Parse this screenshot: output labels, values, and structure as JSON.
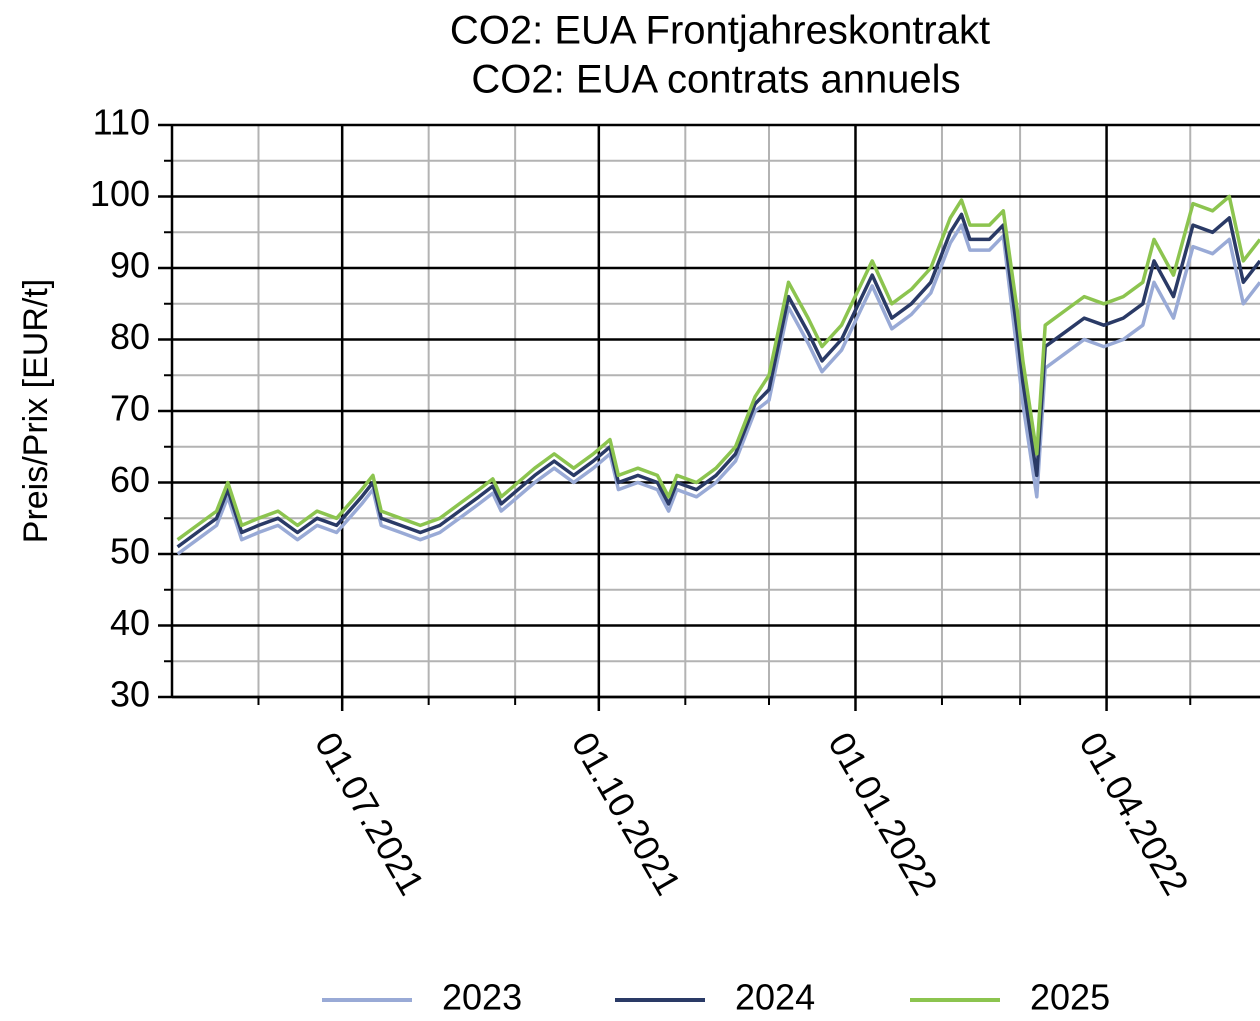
{
  "chart_data": {
    "type": "line",
    "title": "CO2: EUA Frontjahreskontrakt",
    "subtitle": "CO2: EUA contrats annuels",
    "y_label": "Preis/Prix [EUR/t]",
    "x": [
      "2021-05-03",
      "2021-05-10",
      "2021-05-17",
      "2021-05-21",
      "2021-05-26",
      "2021-06-01",
      "2021-06-08",
      "2021-06-15",
      "2021-06-22",
      "2021-06-29",
      "2021-07-08",
      "2021-07-12",
      "2021-07-15",
      "2021-07-22",
      "2021-07-29",
      "2021-08-05",
      "2021-08-12",
      "2021-08-19",
      "2021-08-24",
      "2021-08-27",
      "2021-09-08",
      "2021-09-15",
      "2021-09-22",
      "2021-09-29",
      "2021-10-05",
      "2021-10-08",
      "2021-10-15",
      "2021-10-22",
      "2021-10-26",
      "2021-10-29",
      "2021-11-05",
      "2021-11-12",
      "2021-11-19",
      "2021-11-26",
      "2021-12-01",
      "2021-12-08",
      "2021-12-15",
      "2021-12-20",
      "2021-12-27",
      "2022-01-07",
      "2022-01-14",
      "2022-01-21",
      "2022-01-28",
      "2022-02-04",
      "2022-02-08",
      "2022-02-11",
      "2022-02-18",
      "2022-02-23",
      "2022-02-28",
      "2022-03-02",
      "2022-03-07",
      "2022-03-10",
      "2022-03-17",
      "2022-03-24",
      "2022-03-31",
      "2022-04-07",
      "2022-04-14",
      "2022-04-18",
      "2022-04-25",
      "2022-05-02",
      "2022-05-09",
      "2022-05-15",
      "2022-05-20",
      "2022-05-26"
    ],
    "series": [
      {
        "name": "2023",
        "color": "#99aad6",
        "values": [
          50,
          52,
          54,
          58,
          52,
          53,
          54,
          52,
          54,
          53,
          57,
          59,
          54,
          53,
          52,
          53,
          55,
          57,
          58.5,
          56,
          60,
          62,
          60,
          62,
          64,
          59,
          60,
          59,
          56,
          59,
          58,
          60,
          63,
          70,
          71.5,
          84.5,
          79.5,
          75.5,
          78.5,
          87.5,
          81.5,
          83.5,
          86.5,
          93.5,
          96,
          92.5,
          92.5,
          94.5,
          78,
          71,
          58,
          76,
          78,
          80,
          79,
          80,
          82,
          88,
          83,
          93,
          92,
          94,
          85,
          88
        ]
      },
      {
        "name": "2024",
        "color": "#2a3a66",
        "values": [
          51,
          53,
          55,
          59,
          53,
          54,
          55,
          53,
          55,
          54,
          58,
          60,
          55,
          54,
          53,
          54,
          56,
          58,
          59.5,
          57,
          61,
          63,
          61,
          63,
          65,
          60,
          61,
          60,
          57,
          60,
          59,
          61,
          64,
          71,
          73,
          86,
          81,
          77,
          80,
          89,
          83,
          85,
          88,
          95,
          97.5,
          94,
          94,
          96,
          81,
          74,
          61,
          79,
          81,
          83,
          82,
          83,
          85,
          91,
          86,
          96,
          95,
          97,
          88,
          91
        ]
      },
      {
        "name": "2025",
        "color": "#8cc44f",
        "values": [
          52,
          54,
          56,
          60,
          54,
          55,
          56,
          54,
          56,
          55,
          59,
          61,
          56,
          55,
          54,
          55,
          57,
          59,
          60.5,
          58,
          62,
          64,
          62,
          64,
          66,
          61,
          62,
          61,
          58,
          61,
          60,
          62,
          65,
          72,
          75,
          88,
          83,
          79,
          82,
          91,
          85,
          87,
          90,
          97,
          99.5,
          96,
          96,
          98,
          84,
          77,
          64,
          82,
          84,
          86,
          85,
          86,
          88,
          94,
          89,
          99,
          98,
          100,
          91,
          94
        ]
      }
    ],
    "xlim": [
      "2021-05-01",
      "2022-05-26"
    ],
    "xticks": [
      {
        "value": "2021-07-01",
        "label": "01.07.2021"
      },
      {
        "value": "2021-10-01",
        "label": "01.10.2021"
      },
      {
        "value": "2022-01-01",
        "label": "01.01.2022"
      },
      {
        "value": "2022-04-01",
        "label": "01.04.2022"
      }
    ],
    "ylim": [
      30,
      110
    ],
    "yticks": [
      30,
      40,
      50,
      60,
      70,
      80,
      90,
      100,
      110
    ],
    "grid": true,
    "legend": "bottom"
  }
}
